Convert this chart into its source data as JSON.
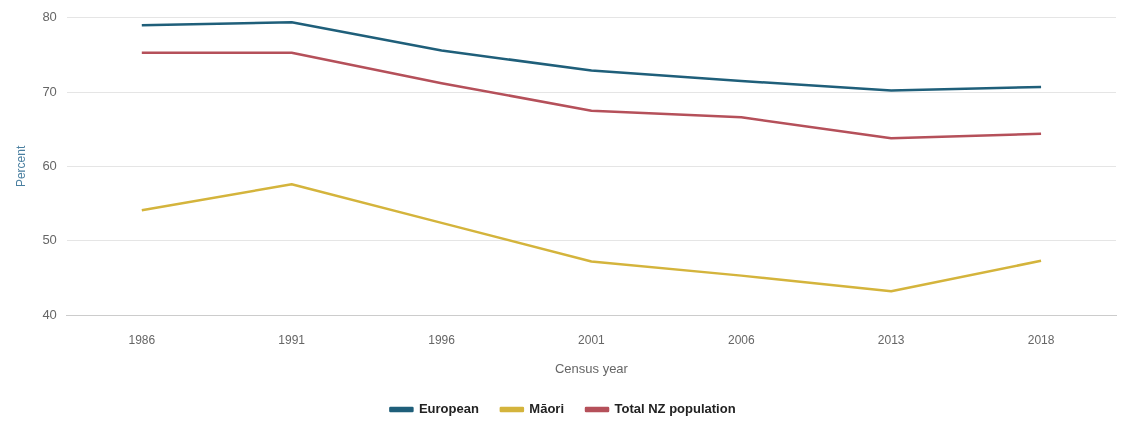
{
  "chart_data": {
    "type": "line",
    "xlabel": "Census year",
    "ylabel": "Percent",
    "categories": [
      "1986",
      "1991",
      "1996",
      "2001",
      "2006",
      "2013",
      "2018"
    ],
    "series": [
      {
        "name": "European",
        "color": "#1f5f7a",
        "values": [
          79.0,
          79.4,
          75.6,
          72.9,
          71.5,
          70.2,
          70.7
        ]
      },
      {
        "name": "Māori",
        "color": "#d4b43c",
        "values": [
          54.1,
          57.6,
          52.4,
          47.2,
          45.3,
          43.2,
          47.3
        ]
      },
      {
        "name": "Total NZ population",
        "color": "#b5505a",
        "values": [
          75.3,
          75.3,
          71.2,
          67.5,
          66.6,
          63.8,
          64.4
        ]
      }
    ],
    "ylim": [
      40,
      80
    ],
    "yticks": [
      40,
      50,
      60,
      70,
      80
    ],
    "grid": "y",
    "legend": "bottom",
    "marker": "none"
  }
}
